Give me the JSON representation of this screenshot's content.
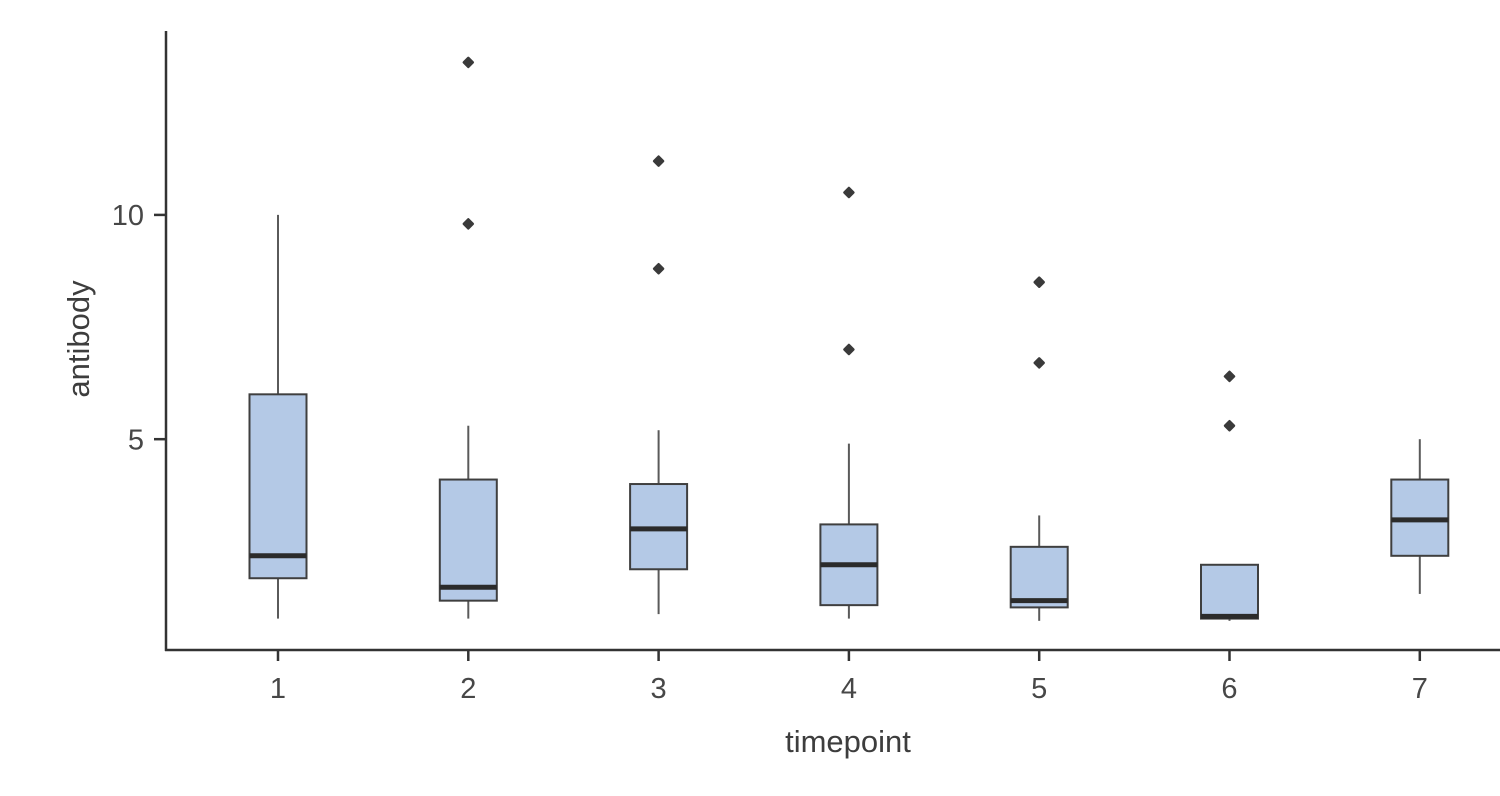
{
  "page": {
    "background": "#ffffff"
  },
  "chart_data": {
    "type": "boxplot",
    "title": "",
    "xlabel": "timepoint",
    "ylabel": "antibody",
    "categories": [
      "1",
      "2",
      "3",
      "4",
      "5",
      "6",
      "7"
    ],
    "y_ticks": [
      5,
      10
    ],
    "ylim": [
      0.3,
      14.1
    ],
    "grid": false,
    "legend": false,
    "series": [
      {
        "timepoint": "1",
        "whisker_low": 1.0,
        "q1": 1.9,
        "median": 2.4,
        "q3": 6.0,
        "whisker_high": 10.0,
        "outliers": []
      },
      {
        "timepoint": "2",
        "whisker_low": 1.0,
        "q1": 1.4,
        "median": 1.7,
        "q3": 4.1,
        "whisker_high": 5.3,
        "outliers": [
          9.8,
          13.4
        ]
      },
      {
        "timepoint": "3",
        "whisker_low": 1.1,
        "q1": 2.1,
        "median": 3.0,
        "q3": 4.0,
        "whisker_high": 5.2,
        "outliers": [
          8.8,
          11.2
        ]
      },
      {
        "timepoint": "4",
        "whisker_low": 1.0,
        "q1": 1.3,
        "median": 2.2,
        "q3": 3.1,
        "whisker_high": 4.9,
        "outliers": [
          7.0,
          10.5
        ]
      },
      {
        "timepoint": "5",
        "whisker_low": 0.95,
        "q1": 1.25,
        "median": 1.4,
        "q3": 2.6,
        "whisker_high": 3.3,
        "outliers": [
          6.7,
          8.5
        ]
      },
      {
        "timepoint": "6",
        "whisker_low": 0.95,
        "q1": 1.0,
        "median": 1.05,
        "q3": 2.2,
        "whisker_high": 2.2,
        "outliers": [
          5.3,
          6.4
        ]
      },
      {
        "timepoint": "7",
        "whisker_low": 1.55,
        "q1": 2.4,
        "median": 3.2,
        "q3": 4.1,
        "whisker_high": 5.0,
        "outliers": []
      }
    ],
    "colors": {
      "box_fill": "#b4c9e6",
      "box_border": "#3f3f3f",
      "median": "#2b2b2b",
      "whisker": "#5a5a5a",
      "outlier": "#3a3a3a",
      "axis_line": "#333333",
      "tick_label": "#474747",
      "axis_title": "#3d3d3d"
    }
  }
}
